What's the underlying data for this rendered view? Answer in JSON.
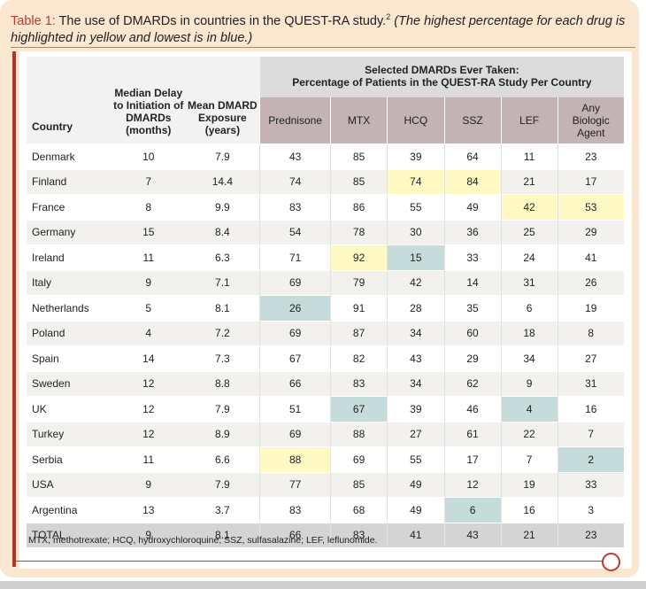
{
  "caption": {
    "label": "Table 1:",
    "text": " The use of DMARDs in countries in the QUEST-RA study.",
    "ref": "2",
    "note": " (The highest percentage for each drug is highlighted in yellow and lowest is in blue.)"
  },
  "colors": {
    "accent": "#b7322a",
    "highest": "#fff9c4",
    "lowest": "#c6dcda",
    "drug_header": "#c4b3b4"
  },
  "headers": {
    "country": "Country",
    "median": "Median Delay to Initiation of DMARDs (months)",
    "mean": "Mean DMARD Exposure (years)",
    "group_line1": "Selected DMARDs Ever Taken:",
    "group_line2": "Percentage of Patients in the QUEST-RA Study Per Country",
    "drugs": [
      "Prednisone",
      "MTX",
      "HCQ",
      "SSZ",
      "LEF",
      "Any Biologic Agent"
    ]
  },
  "rows": [
    {
      "country": "Denmark",
      "median": "10",
      "mean": "7.9",
      "vals": [
        "43",
        "85",
        "39",
        "64",
        "11",
        "23"
      ]
    },
    {
      "country": "Finland",
      "median": "7",
      "mean": "14.4",
      "vals": [
        "74",
        "85",
        "74",
        "84",
        "21",
        "17"
      ]
    },
    {
      "country": "France",
      "median": "8",
      "mean": "9.9",
      "vals": [
        "83",
        "86",
        "55",
        "49",
        "42",
        "53"
      ]
    },
    {
      "country": "Germany",
      "median": "15",
      "mean": "8.4",
      "vals": [
        "54",
        "78",
        "30",
        "36",
        "25",
        "29"
      ]
    },
    {
      "country": "Ireland",
      "median": "11",
      "mean": "6.3",
      "vals": [
        "71",
        "92",
        "15",
        "33",
        "24",
        "41"
      ]
    },
    {
      "country": "Italy",
      "median": "9",
      "mean": "7.1",
      "vals": [
        "69",
        "79",
        "42",
        "14",
        "31",
        "26"
      ]
    },
    {
      "country": "Netherlands",
      "median": "5",
      "mean": "8.1",
      "vals": [
        "26",
        "91",
        "28",
        "35",
        "6",
        "19"
      ]
    },
    {
      "country": "Poland",
      "median": "4",
      "mean": "7.2",
      "vals": [
        "69",
        "87",
        "34",
        "60",
        "18",
        "8"
      ]
    },
    {
      "country": "Spain",
      "median": "14",
      "mean": "7.3",
      "vals": [
        "67",
        "82",
        "43",
        "29",
        "34",
        "27"
      ]
    },
    {
      "country": "Sweden",
      "median": "12",
      "mean": "8.8",
      "vals": [
        "66",
        "83",
        "34",
        "62",
        "9",
        "31"
      ]
    },
    {
      "country": "UK",
      "median": "12",
      "mean": "7.9",
      "vals": [
        "51",
        "67",
        "39",
        "46",
        "4",
        "16"
      ]
    },
    {
      "country": "Turkey",
      "median": "12",
      "mean": "8.9",
      "vals": [
        "69",
        "88",
        "27",
        "61",
        "22",
        "7"
      ]
    },
    {
      "country": "Serbia",
      "median": "11",
      "mean": "6.6",
      "vals": [
        "88",
        "69",
        "55",
        "17",
        "7",
        "2"
      ]
    },
    {
      "country": "USA",
      "median": "9",
      "mean": "7.9",
      "vals": [
        "77",
        "85",
        "49",
        "12",
        "19",
        "33"
      ]
    },
    {
      "country": "Argentina",
      "median": "13",
      "mean": "3.7",
      "vals": [
        "83",
        "68",
        "49",
        "6",
        "16",
        "3"
      ]
    }
  ],
  "total": {
    "country": "TOTAL",
    "median": "9",
    "mean": "8.1",
    "vals": [
      "66",
      "83",
      "41",
      "43",
      "21",
      "23"
    ]
  },
  "highlights": {
    "high": [
      [
        1,
        2
      ],
      [
        1,
        3
      ],
      [
        2,
        4
      ],
      [
        2,
        5
      ],
      [
        4,
        1
      ],
      [
        12,
        0
      ]
    ],
    "low": [
      [
        4,
        2
      ],
      [
        6,
        0
      ],
      [
        10,
        1
      ],
      [
        10,
        4
      ],
      [
        12,
        5
      ],
      [
        14,
        3
      ]
    ]
  },
  "footnote": "MTX, methotrexate; HCQ, hydroxychloroquine; SSZ, sulfasalazine; LEF, leflunomide."
}
